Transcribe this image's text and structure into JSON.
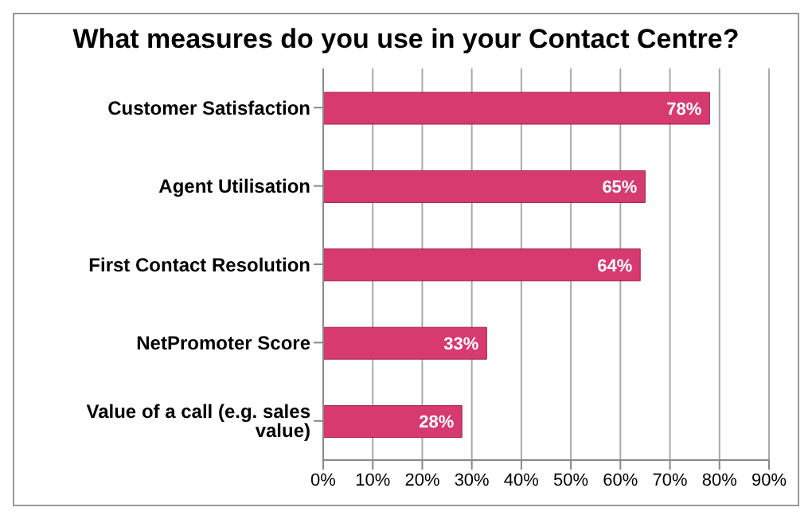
{
  "chart_data": {
    "type": "bar",
    "title": "What measures do you use in your Contact Centre?",
    "orientation": "horizontal",
    "categories": [
      "Customer Satisfaction",
      "Agent Utilisation",
      "First Contact Resolution",
      "NetPromoter Score",
      "Value of a call (e.g. sales value)"
    ],
    "values": [
      78,
      65,
      64,
      33,
      28
    ],
    "value_labels": [
      "78%",
      "65%",
      "64%",
      "33%",
      "28%"
    ],
    "color": "#d63a6e",
    "xlim": [
      0,
      90
    ],
    "xticks": [
      {
        "value": 0,
        "label": "0%"
      },
      {
        "value": 10,
        "label": "10%"
      },
      {
        "value": 20,
        "label": "20%"
      },
      {
        "value": 30,
        "label": "30%"
      },
      {
        "value": 40,
        "label": "40%"
      },
      {
        "value": 50,
        "label": "50%"
      },
      {
        "value": 60,
        "label": "60%"
      },
      {
        "value": 70,
        "label": "70%"
      },
      {
        "value": 80,
        "label": "80%"
      },
      {
        "value": 90,
        "label": "90%"
      }
    ],
    "grid": "x"
  }
}
